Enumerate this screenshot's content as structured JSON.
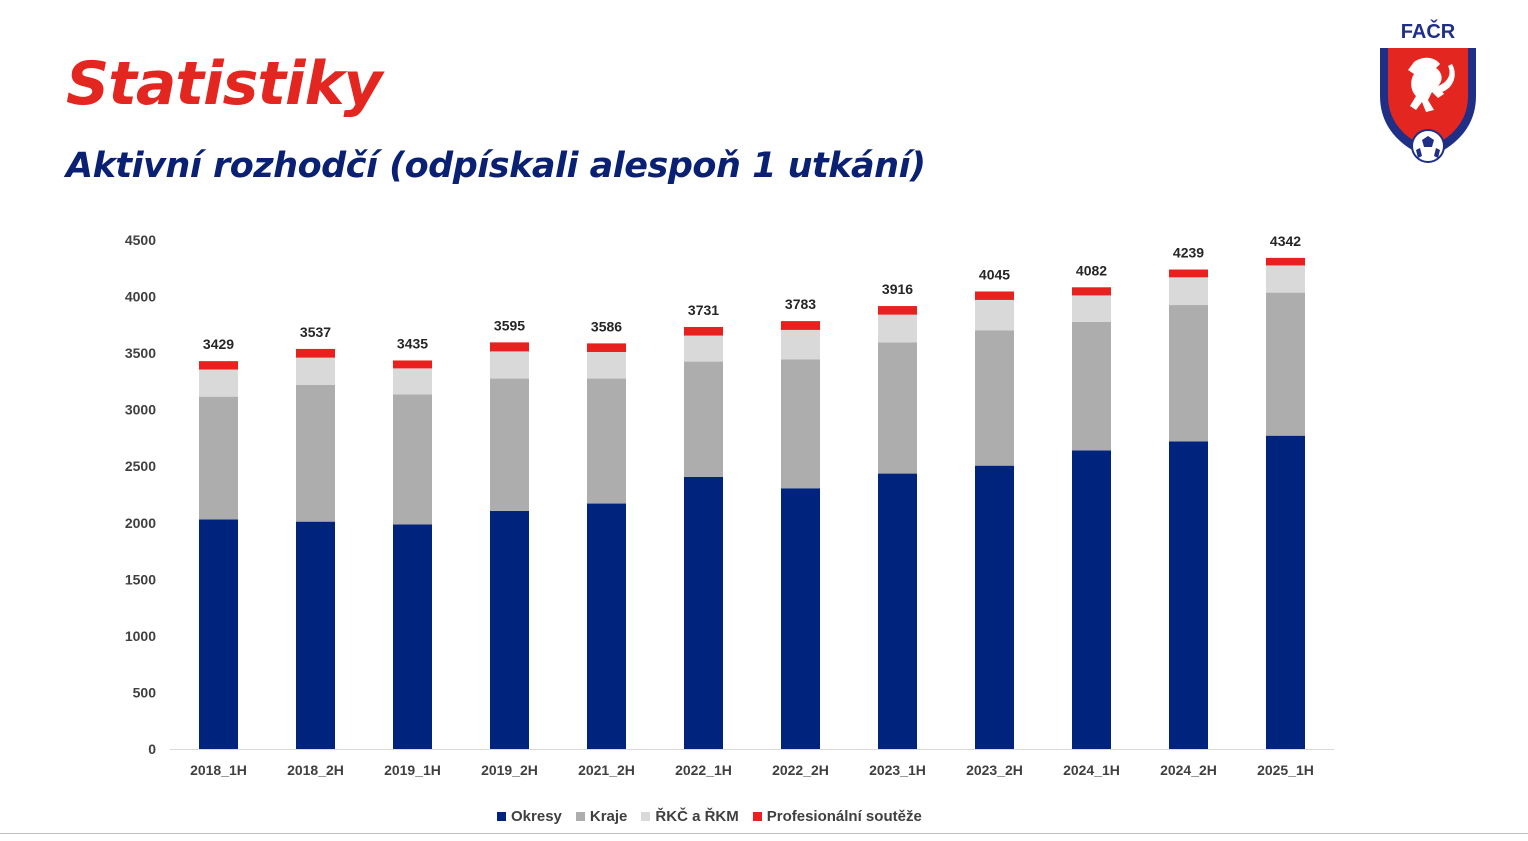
{
  "slide": {
    "title": "Statistiky",
    "subtitle": "Aktivní rozhodčí (odpískali alespoň 1 utkání)"
  },
  "logo": {
    "text": "FAČR",
    "icon": "facr-lion-crest",
    "colors": {
      "blue": "#1f2f86",
      "red": "#e3261f"
    }
  },
  "colors": {
    "title": "#e3261f",
    "subtitle": "#0a2173"
  },
  "chart_data": {
    "type": "bar",
    "stacked": true,
    "categories": [
      "2018_1H",
      "2018_2H",
      "2019_1H",
      "2019_2H",
      "2021_2H",
      "2022_1H",
      "2022_2H",
      "2023_1H",
      "2023_2H",
      "2024_1H",
      "2024_2H",
      "2025_1H"
    ],
    "series": [
      {
        "name": "Okresy",
        "color": "#00247d",
        "values": [
          2030,
          2010,
          1985,
          2105,
          2170,
          2405,
          2305,
          2435,
          2505,
          2640,
          2720,
          2770
        ]
      },
      {
        "name": "Kraje",
        "color": "#adadad",
        "values": [
          1085,
          1210,
          1150,
          1170,
          1105,
          1020,
          1140,
          1160,
          1195,
          1135,
          1205,
          1265
        ]
      },
      {
        "name": "ŘKČ a ŘKM",
        "color": "#d9d9d9",
        "values": [
          240,
          240,
          230,
          240,
          235,
          230,
          260,
          245,
          270,
          235,
          245,
          240
        ]
      },
      {
        "name": "Profesionální soutěže",
        "color": "#e8211f",
        "values": [
          74,
          77,
          70,
          80,
          76,
          76,
          78,
          76,
          75,
          72,
          69,
          67
        ]
      }
    ],
    "totals": [
      3429,
      3537,
      3435,
      3595,
      3586,
      3731,
      3783,
      3916,
      4045,
      4082,
      4239,
      4342
    ],
    "ylim": [
      0,
      4500
    ],
    "yticks": [
      0,
      500,
      1000,
      1500,
      2000,
      2500,
      3000,
      3500,
      4000,
      4500
    ],
    "xlabel": "",
    "ylabel": "",
    "grid": false,
    "legend_position": "bottom"
  }
}
